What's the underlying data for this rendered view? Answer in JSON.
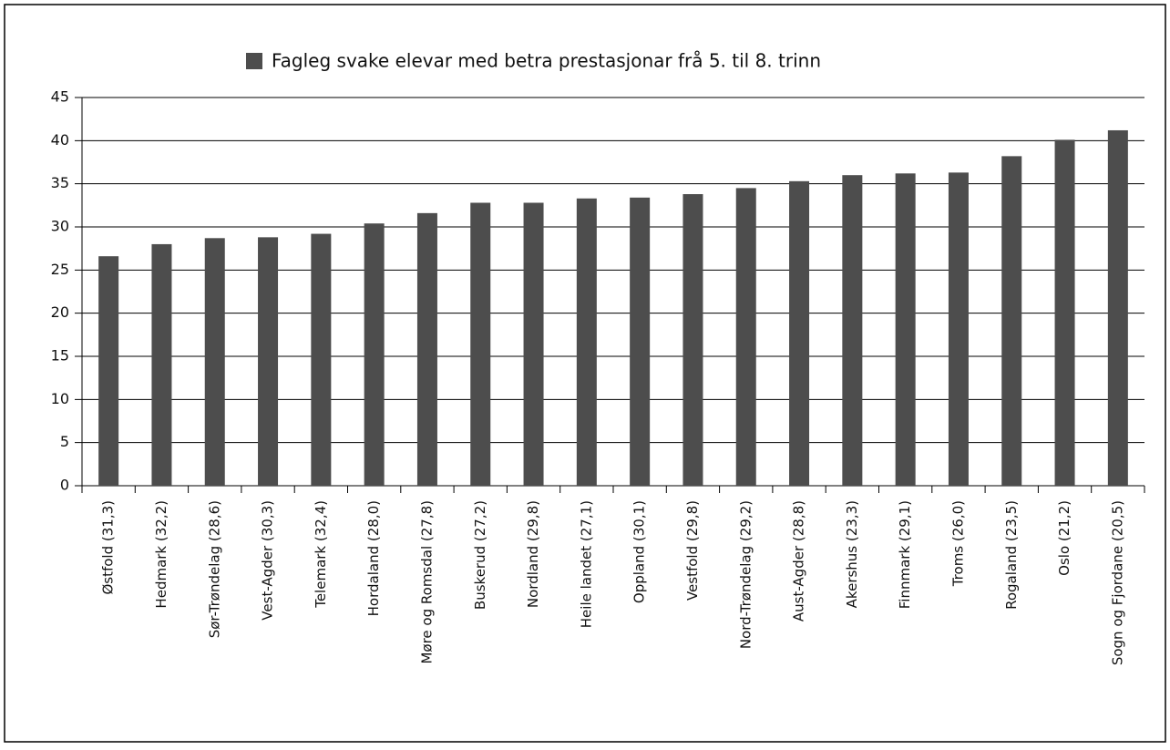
{
  "chart_data": {
    "type": "bar",
    "legend": "Fagleg svake elevar med betra prestasjonar frå 5. til 8. trinn",
    "categories": [
      "Østfold (31,3)",
      "Hedmark (32,2)",
      "Sør-Trøndelag (28,6)",
      "Vest-Agder (30,3)",
      "Telemark (32,4)",
      "Hordaland (28,0)",
      "Møre og Romsdal (27,8)",
      "Buskerud (27,2)",
      "Nordland (29,8)",
      "Heile landet (27,1)",
      "Oppland (30,1)",
      "Vestfold (29,8)",
      "Nord-Trøndelag (29,2)",
      "Aust-Agder (28,8)",
      "Akershus (23,3)",
      "Finnmark (29,1)",
      "Troms (26,0)",
      "Rogaland (23,5)",
      "Oslo (21,2)",
      "Sogn og Fjordane (20,5)"
    ],
    "values": [
      26.6,
      28.0,
      28.7,
      28.8,
      29.2,
      30.4,
      31.6,
      32.8,
      32.8,
      33.3,
      33.4,
      33.8,
      34.5,
      35.3,
      36.0,
      36.2,
      36.3,
      38.2,
      40.1,
      41.2
    ],
    "color": "#4d4d4d",
    "ylim": [
      0,
      45
    ],
    "yticks": [
      0,
      5,
      10,
      15,
      20,
      25,
      30,
      35,
      40,
      45
    ],
    "grid": true
  }
}
